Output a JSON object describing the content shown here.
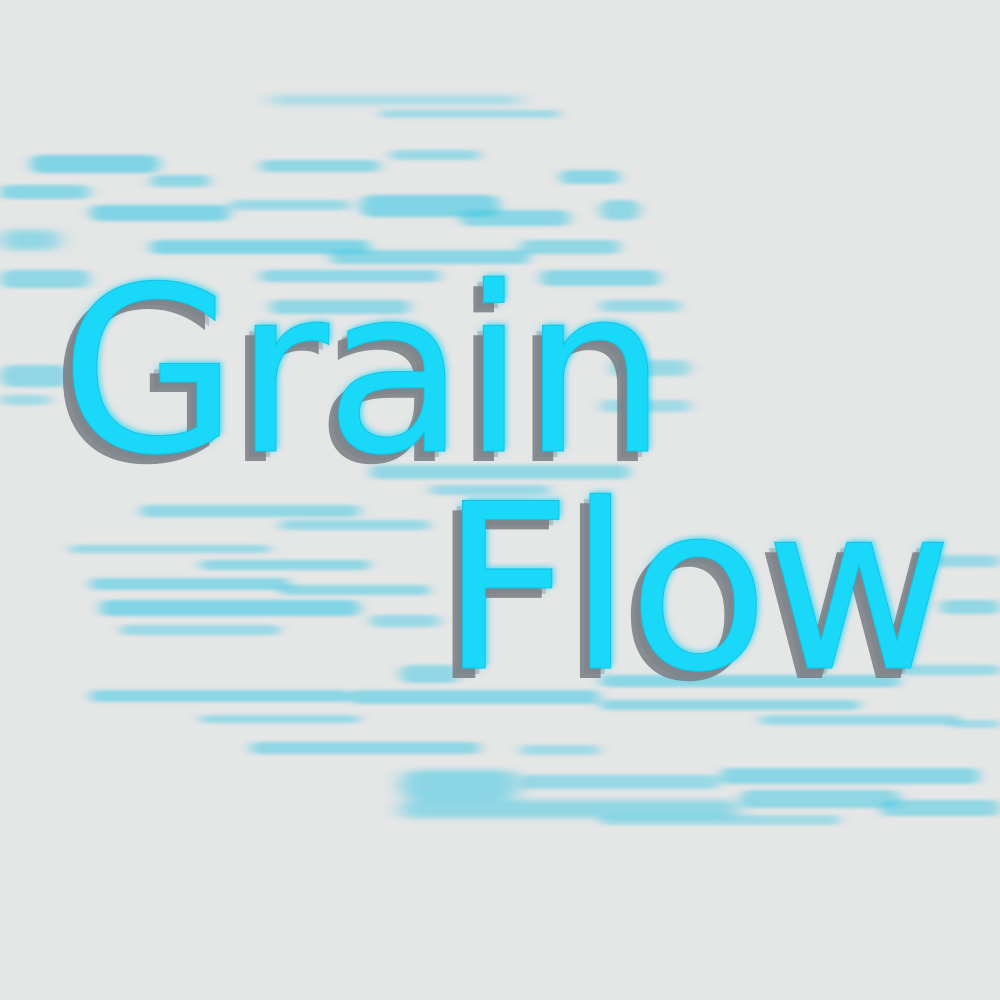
{
  "artwork": {
    "line_1": "Grain",
    "line_2": "Flow",
    "text_color": "#19d8f8",
    "shadow_color": "#787d82",
    "background_color": "#e5e6e6",
    "streak_color": "#3ec8e4"
  }
}
